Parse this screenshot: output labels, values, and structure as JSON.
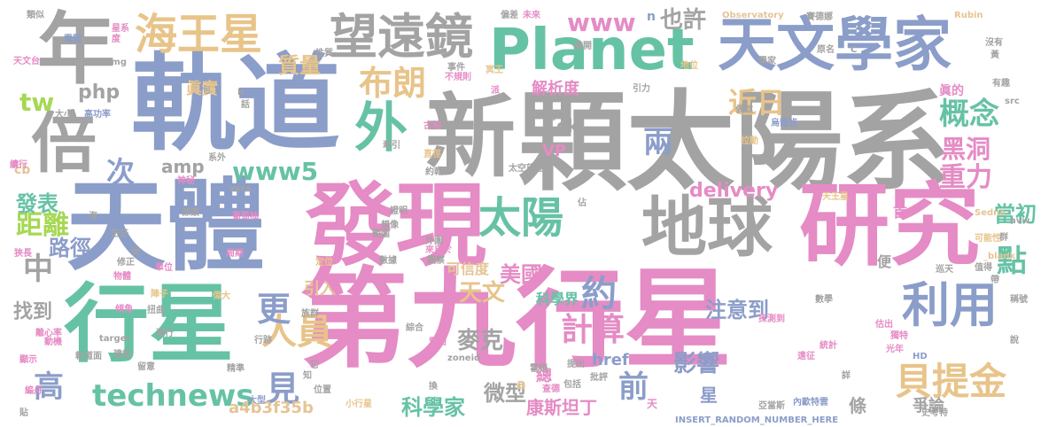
{
  "palette": {
    "gray": "#a3a3a3",
    "blue": "#8b9dc9",
    "pink": "#e58bc5",
    "green": "#66c2a5",
    "orange": "#e8c48a",
    "lightgreen": "#a6d854",
    "tan": "#e5c494",
    "peach": "#fc8d62"
  },
  "words": [
    {
      "text": "第九行星",
      "color": "pink"
    },
    {
      "text": "顆太陽系",
      "color": "gray"
    },
    {
      "text": "軌道",
      "color": "blue"
    },
    {
      "text": "天體",
      "color": "blue"
    },
    {
      "text": "發現",
      "color": "pink"
    },
    {
      "text": "研究",
      "color": "pink"
    },
    {
      "text": "Planet",
      "color": "green"
    },
    {
      "text": "行星",
      "color": "green"
    },
    {
      "text": "新",
      "color": "gray"
    },
    {
      "text": "天文學家",
      "color": "blue"
    },
    {
      "text": "地球",
      "color": "gray"
    },
    {
      "text": "年",
      "color": "gray"
    },
    {
      "text": "倍",
      "color": "gray"
    },
    {
      "text": "望遠鏡",
      "color": "gray"
    },
    {
      "text": "海王星",
      "color": "orange"
    },
    {
      "text": "外",
      "color": "green"
    },
    {
      "text": "利用",
      "color": "blue"
    },
    {
      "text": "太陽",
      "color": "green"
    },
    {
      "text": "貝提金",
      "color": "orange"
    },
    {
      "text": "布朗",
      "color": "orange"
    },
    {
      "text": "technews",
      "color": "green"
    },
    {
      "text": "人員",
      "color": "orange"
    },
    {
      "text": "更",
      "color": "blue"
    },
    {
      "text": "計算",
      "color": "pink"
    },
    {
      "text": "約",
      "color": "blue"
    },
    {
      "text": "www5",
      "color": "green"
    },
    {
      "text": "www",
      "color": "pink"
    },
    {
      "text": "概念",
      "color": "green"
    },
    {
      "text": "次",
      "color": "blue"
    },
    {
      "text": "中",
      "color": "gray"
    },
    {
      "text": "前",
      "color": "blue"
    },
    {
      "text": "見",
      "color": "blue"
    },
    {
      "text": "高",
      "color": "blue"
    },
    {
      "text": "tw",
      "color": "lightgreen"
    },
    {
      "text": "php",
      "color": "gray"
    },
    {
      "text": "amp",
      "color": "gray"
    },
    {
      "text": "質量",
      "color": "orange"
    },
    {
      "text": "黑洞",
      "color": "pink"
    },
    {
      "text": "重力",
      "color": "pink"
    },
    {
      "text": "兩",
      "color": "blue"
    },
    {
      "text": "近日",
      "color": "orange"
    },
    {
      "text": "delivery",
      "color": "pink"
    },
    {
      "text": "點",
      "color": "green"
    },
    {
      "text": "當初",
      "color": "green"
    },
    {
      "text": "距離",
      "color": "lightgreen"
    },
    {
      "text": "發表",
      "color": "green"
    },
    {
      "text": "路徑",
      "color": "blue"
    },
    {
      "text": "找到",
      "color": "gray"
    },
    {
      "text": "影響",
      "color": "blue"
    },
    {
      "text": "注意到",
      "color": "blue"
    },
    {
      "text": "美國",
      "color": "pink"
    },
    {
      "text": "天文",
      "color": "orange"
    },
    {
      "text": "麥克",
      "color": "gray"
    },
    {
      "text": "科學家",
      "color": "green"
    },
    {
      "text": "微型",
      "color": "gray"
    },
    {
      "text": "康斯坦丁",
      "color": "pink"
    },
    {
      "text": "a4b3f35b",
      "color": "tan"
    },
    {
      "text": "解析度",
      "color": "pink"
    },
    {
      "text": "眞實",
      "color": "orange"
    },
    {
      "text": "也許",
      "color": "gray"
    },
    {
      "text": "可信度",
      "color": "tan"
    },
    {
      "text": "引入",
      "color": "tan"
    },
    {
      "text": "ck",
      "color": "gray"
    },
    {
      "text": "VP",
      "color": "pink"
    },
    {
      "text": "n",
      "color": "blue"
    },
    {
      "text": "科學界",
      "color": "green"
    },
    {
      "text": "href",
      "color": "blue"
    },
    {
      "text": "總",
      "color": "pink"
    },
    {
      "text": "星",
      "color": "blue"
    },
    {
      "text": "條",
      "color": "gray"
    },
    {
      "text": "首",
      "color": "pink"
    },
    {
      "text": "便",
      "color": "gray"
    },
    {
      "text": "爭論",
      "color": "gray"
    },
    {
      "text": "a",
      "color": "tan"
    },
    {
      "text": "cb",
      "color": "tan"
    },
    {
      "text": "眞的",
      "color": "pink"
    },
    {
      "text": "INSERT_RANDOM_NUMBER_HERE",
      "color": "blue"
    },
    {
      "text": "Observatory",
      "color": "tan"
    },
    {
      "text": "Rubin",
      "color": "tan"
    },
    {
      "text": "賽德娜",
      "color": "gray"
    },
    {
      "text": "類似",
      "color": "gray"
    },
    {
      "text": "偏差",
      "color": "gray"
    },
    {
      "text": "未來",
      "color": "pink"
    },
    {
      "text": "天文台",
      "color": "pink"
    },
    {
      "text": "電腦",
      "color": "blue"
    },
    {
      "text": "事件",
      "color": "gray"
    },
    {
      "text": "冥王",
      "color": "orange"
    },
    {
      "text": "不規則",
      "color": "pink"
    },
    {
      "text": "地位",
      "color": "orange"
    },
    {
      "text": "學家",
      "color": "gray"
    },
    {
      "text": "有趣",
      "color": "gray"
    },
    {
      "text": "引力",
      "color": "gray"
    },
    {
      "text": "src",
      "color": "gray"
    },
    {
      "text": "高功率",
      "color": "blue"
    },
    {
      "text": "大小",
      "color": "gray"
    },
    {
      "text": "古柏",
      "color": "pink"
    },
    {
      "text": "烏爾班",
      "color": "blue"
    },
    {
      "text": "拉動",
      "color": "orange"
    },
    {
      "text": "牽引",
      "color": "gray"
    },
    {
      "text": "直徑",
      "color": "orange"
    },
    {
      "text": "約翰",
      "color": "gray"
    },
    {
      "text": "太空望遠鏡",
      "color": "gray"
    },
    {
      "text": "Sedna",
      "color": "tan"
    },
    {
      "text": "avw",
      "color": "gray"
    },
    {
      "text": "天王星",
      "color": "orange"
    },
    {
      "text": "_blank",
      "color": "tan"
    },
    {
      "text": "Vera",
      "color": "gray"
    },
    {
      "text": "系外",
      "color": "gray"
    },
    {
      "text": "續行",
      "color": "pink"
    },
    {
      "text": "神秘",
      "color": "pink"
    },
    {
      "text": "證明",
      "color": "gray"
    },
    {
      "text": "葡萄柚",
      "color": "pink"
    },
    {
      "text": "源頭",
      "color": "gray"
    },
    {
      "text": "外圍",
      "color": "gray"
    },
    {
      "text": "來自於",
      "color": "pink"
    },
    {
      "text": "周期",
      "color": "pink"
    },
    {
      "text": "定位",
      "color": "orange"
    },
    {
      "text": "數據",
      "color": "gray"
    },
    {
      "text": "觀察",
      "color": "gray"
    },
    {
      "text": "單位",
      "color": "pink"
    },
    {
      "text": "物體",
      "color": "pink"
    },
    {
      "text": "陣子",
      "color": "orange"
    },
    {
      "text": "偉大",
      "color": "orange"
    },
    {
      "text": "族群",
      "color": "gray"
    },
    {
      "text": "傾角",
      "color": "pink"
    },
    {
      "text": "扭曲",
      "color": "gray"
    },
    {
      "text": "顯示",
      "color": "pink"
    },
    {
      "text": "離心率",
      "color": "pink"
    },
    {
      "text": "動機",
      "color": "pink"
    },
    {
      "text": "軌道面",
      "color": "gray"
    },
    {
      "text": "建設",
      "color": "gray"
    },
    {
      "text": "留意",
      "color": "gray"
    },
    {
      "text": "編舟",
      "color": "pink"
    },
    {
      "text": "target",
      "color": "gray"
    },
    {
      "text": "精準",
      "color": "gray"
    },
    {
      "text": "大型",
      "color": "blue"
    },
    {
      "text": "位置",
      "color": "gray"
    },
    {
      "text": "小行星",
      "color": "orange"
    },
    {
      "text": "zoneid",
      "color": "gray"
    },
    {
      "text": "雪柏",
      "color": "pink"
    },
    {
      "text": "綜合",
      "color": "gray"
    },
    {
      "text": "霍頓",
      "color": "gray"
    },
    {
      "text": "包括",
      "color": "gray"
    },
    {
      "text": "提出",
      "color": "gray"
    },
    {
      "text": "批評",
      "color": "gray"
    },
    {
      "text": "查德",
      "color": "pink"
    },
    {
      "text": "探測到",
      "color": "pink"
    },
    {
      "text": "數學",
      "color": "gray"
    },
    {
      "text": "亞當斯",
      "color": "gray"
    },
    {
      "text": "內歐特雲",
      "color": "blue"
    },
    {
      "text": "HD",
      "color": "blue"
    },
    {
      "text": "史考特",
      "color": "gray"
    },
    {
      "text": "統計",
      "color": "pink"
    },
    {
      "text": "光年",
      "color": "pink"
    },
    {
      "text": "遠征",
      "color": "pink"
    },
    {
      "text": "值得",
      "color": "gray"
    },
    {
      "text": "巡天",
      "color": "gray"
    },
    {
      "text": "帶",
      "color": "gray"
    },
    {
      "text": "獨特",
      "color": "pink"
    },
    {
      "text": "可能性",
      "color": "orange"
    },
    {
      "text": "星系",
      "color": "pink"
    },
    {
      "text": "度",
      "color": "pink"
    },
    {
      "text": "img",
      "color": "gray"
    },
    {
      "text": "包",
      "color": "gray"
    },
    {
      "text": "b",
      "color": "gray"
    },
    {
      "text": "話",
      "color": "gray"
    },
    {
      "text": "性質",
      "color": "gray"
    },
    {
      "text": "派",
      "color": "pink"
    },
    {
      "text": "時",
      "color": "gray"
    },
    {
      "text": "C",
      "color": "gray"
    },
    {
      "text": "原名",
      "color": "gray"
    },
    {
      "text": "離開",
      "color": "gray"
    },
    {
      "text": "說",
      "color": "gray"
    },
    {
      "text": "海",
      "color": "gray"
    },
    {
      "text": "茫茫",
      "color": "gray"
    },
    {
      "text": "受",
      "color": "gray"
    },
    {
      "text": "修正",
      "color": "gray"
    },
    {
      "text": "狹長",
      "color": "pink"
    },
    {
      "text": "進行",
      "color": "gray"
    },
    {
      "text": "估出",
      "color": "pink"
    },
    {
      "text": "詳",
      "color": "gray"
    },
    {
      "text": "佔",
      "color": "gray"
    },
    {
      "text": "偶然",
      "color": "gray"
    },
    {
      "text": "想像",
      "color": "gray"
    },
    {
      "text": "範圍",
      "color": "gray"
    },
    {
      "text": "沒有",
      "color": "gray"
    },
    {
      "text": "稱號",
      "color": "gray"
    },
    {
      "text": "天",
      "color": "pink"
    },
    {
      "text": "換",
      "color": "gray"
    },
    {
      "text": "知",
      "color": "gray"
    },
    {
      "text": "它",
      "color": "gray"
    },
    {
      "text": "貼",
      "color": "gray"
    },
    {
      "text": "黃",
      "color": "gray"
    },
    {
      "text": "行跡",
      "color": "gray"
    },
    {
      "text": "群",
      "color": "gray"
    }
  ]
}
